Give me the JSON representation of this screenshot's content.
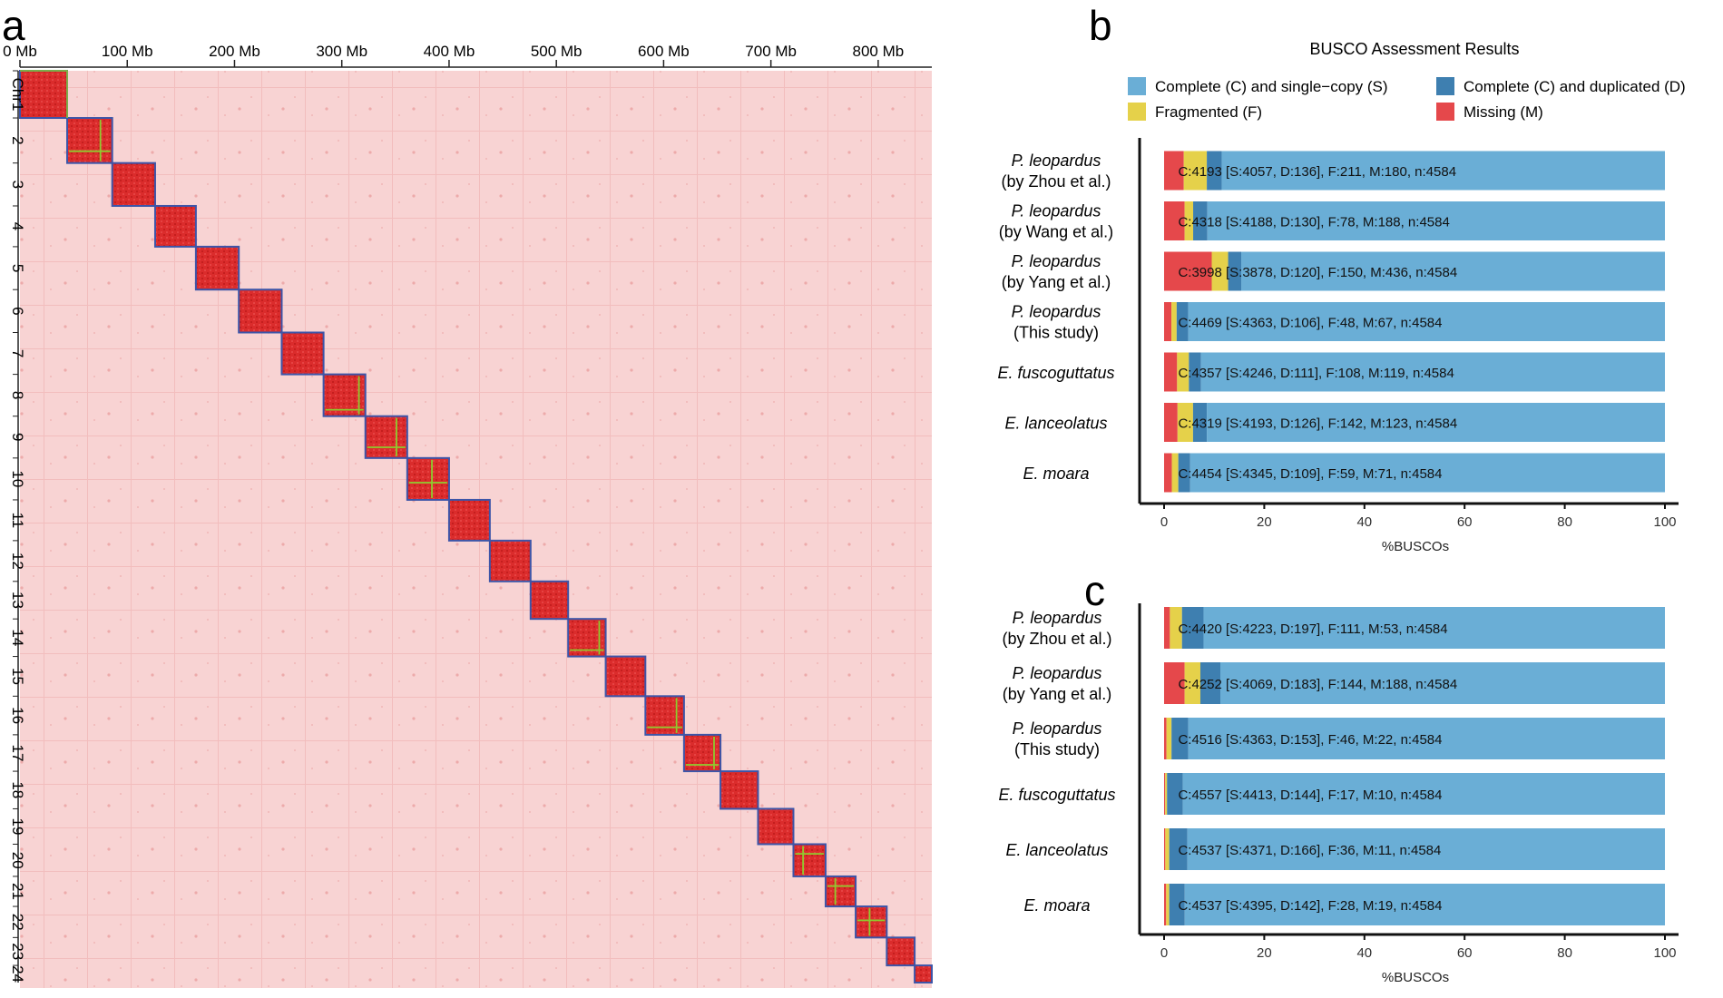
{
  "panel_labels": {
    "a": "a",
    "b": "b",
    "c": "c"
  },
  "colors": {
    "single": "#6AAED6",
    "duplicated": "#3E7FB0",
    "fragmented": "#E5D14A",
    "missing": "#E5484B",
    "heat_bg": "#F8D3D3",
    "heat_block": "#DB2C2C",
    "heat_border": "#3D55A8",
    "heat_line": "#8ECB2E"
  },
  "chart_data": [
    {
      "type": "heatmap",
      "panel": "a",
      "title": "",
      "x_ticks": [
        "0 Mb",
        "100 Mb",
        "200 Mb",
        "300 Mb",
        "400 Mb",
        "500 Mb",
        "600 Mb",
        "700 Mb",
        "800 Mb"
      ],
      "x_tick_values": [
        0,
        100,
        200,
        300,
        400,
        500,
        600,
        700,
        800
      ],
      "x_range": [
        0,
        845
      ],
      "chromosome_labels": [
        "Chr1",
        "2",
        "3",
        "4",
        "5",
        "6",
        "7",
        "8",
        "9",
        "10",
        "11",
        "12",
        "13",
        "14",
        "15",
        "16",
        "17",
        "18",
        "19",
        "20",
        "21",
        "22",
        "23",
        "24"
      ],
      "chromosome_ends_mb": [
        44,
        86,
        126,
        164,
        204,
        244,
        283,
        322,
        361,
        400,
        438,
        476,
        511,
        546,
        583,
        619,
        653,
        688,
        721,
        751,
        779,
        808,
        834,
        850
      ],
      "crosshair_positions": [
        {
          "chr": "2",
          "pos_mb": 75
        },
        {
          "chr": "8",
          "pos_mb": 316
        },
        {
          "chr": "9",
          "pos_mb": 351
        },
        {
          "chr": "10",
          "pos_mb": 384
        },
        {
          "chr": "14",
          "pos_mb": 540
        },
        {
          "chr": "16",
          "pos_mb": 612
        },
        {
          "chr": "17",
          "pos_mb": 647
        },
        {
          "chr": "20",
          "pos_mb": 730
        },
        {
          "chr": "21",
          "pos_mb": 760
        },
        {
          "chr": "22",
          "pos_mb": 792
        }
      ]
    },
    {
      "type": "bar",
      "panel": "b",
      "stacked": true,
      "orientation": "horizontal",
      "title": "BUSCO Assessment Results",
      "xlabel": "%BUSCOs",
      "xlim": [
        0,
        100
      ],
      "x_ticks": [
        0,
        20,
        40,
        60,
        80,
        100
      ],
      "legend_position": "top",
      "legend": [
        {
          "key": "single",
          "label": "Complete (C) and single−copy (S)"
        },
        {
          "key": "duplicated",
          "label": "Complete (C) and duplicated (D)"
        },
        {
          "key": "fragmented",
          "label": "Fragmented (F)"
        },
        {
          "key": "missing",
          "label": "Missing (M)"
        }
      ],
      "rows": [
        {
          "line1": "P. leopardus",
          "line2": "(by Zhou et al.)",
          "missing": 180,
          "fragmented": 211,
          "duplicated": 136,
          "single": 4057,
          "n": 4584,
          "label": "C:4193 [S:4057, D:136], F:211, M:180, n:4584"
        },
        {
          "line1": "P. leopardus",
          "line2": "(by Wang et al.)",
          "missing": 188,
          "fragmented": 78,
          "duplicated": 130,
          "single": 4188,
          "n": 4584,
          "label": "C:4318 [S:4188, D:130], F:78, M:188, n:4584"
        },
        {
          "line1": "P. leopardus",
          "line2": "(by Yang et al.)",
          "missing": 436,
          "fragmented": 150,
          "duplicated": 120,
          "single": 3878,
          "n": 4584,
          "label": "C:3998 [S:3878, D:120], F:150, M:436, n:4584"
        },
        {
          "line1": "P. leopardus",
          "line2": "(This study)",
          "missing": 67,
          "fragmented": 48,
          "duplicated": 106,
          "single": 4363,
          "n": 4584,
          "label": "C:4469 [S:4363, D:106], F:48, M:67, n:4584"
        },
        {
          "line1": "E. fuscoguttatus",
          "line2": "",
          "missing": 119,
          "fragmented": 108,
          "duplicated": 111,
          "single": 4246,
          "n": 4584,
          "label": "C:4357 [S:4246, D:111], F:108, M:119, n:4584"
        },
        {
          "line1": "E. lanceolatus",
          "line2": "",
          "missing": 123,
          "fragmented": 142,
          "duplicated": 126,
          "single": 4193,
          "n": 4584,
          "label": "C:4319 [S:4193, D:126], F:142, M:123, n:4584"
        },
        {
          "line1": "E. moara",
          "line2": "",
          "missing": 71,
          "fragmented": 59,
          "duplicated": 109,
          "single": 4345,
          "n": 4584,
          "label": "C:4454 [S:4345, D:109], F:59, M:71, n:4584"
        }
      ]
    },
    {
      "type": "bar",
      "panel": "c",
      "stacked": true,
      "orientation": "horizontal",
      "title": "",
      "xlabel": "%BUSCOs",
      "xlim": [
        0,
        100
      ],
      "x_ticks": [
        0,
        20,
        40,
        60,
        80,
        100
      ],
      "rows": [
        {
          "line1": "P. leopardus",
          "line2": "(by Zhou et al.)",
          "missing": 53,
          "fragmented": 111,
          "duplicated": 197,
          "single": 4223,
          "n": 4584,
          "label": "C:4420 [S:4223, D:197], F:111, M:53, n:4584"
        },
        {
          "line1": "P. leopardus",
          "line2": "(by Yang et al.)",
          "missing": 188,
          "fragmented": 144,
          "duplicated": 183,
          "single": 4069,
          "n": 4584,
          "label": "C:4252 [S:4069, D:183], F:144, M:188, n:4584"
        },
        {
          "line1": "P. leopardus",
          "line2": "(This study)",
          "missing": 22,
          "fragmented": 46,
          "duplicated": 153,
          "single": 4363,
          "n": 4584,
          "label": "C:4516 [S:4363, D:153], F:46, M:22, n:4584"
        },
        {
          "line1": "E. fuscoguttatus",
          "line2": "",
          "missing": 10,
          "fragmented": 17,
          "duplicated": 144,
          "single": 4413,
          "n": 4584,
          "label": "C:4557 [S:4413, D:144], F:17, M:10, n:4584"
        },
        {
          "line1": "E. lanceolatus",
          "line2": "",
          "missing": 11,
          "fragmented": 36,
          "duplicated": 166,
          "single": 4371,
          "n": 4584,
          "label": "C:4537 [S:4371, D:166], F:36, M:11, n:4584"
        },
        {
          "line1": "E. moara",
          "line2": "",
          "missing": 19,
          "fragmented": 28,
          "duplicated": 142,
          "single": 4395,
          "n": 4584,
          "label": "C:4537 [S:4395, D:142], F:28, M:19, n:4584"
        }
      ]
    }
  ]
}
